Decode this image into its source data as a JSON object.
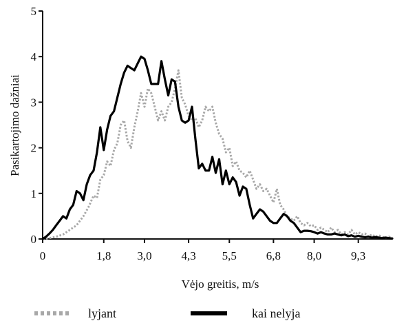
{
  "chart_data": {
    "type": "line",
    "xlabel": "Vėjo greitis, m/s",
    "ylabel": "Pasikartojimo dažniai",
    "xlim": [
      0,
      10.3
    ],
    "ylim": [
      0,
      5
    ],
    "x_ticks": [
      {
        "value": 0,
        "label": "0"
      },
      {
        "value": 1.8,
        "label": "1,8"
      },
      {
        "value": 3.0,
        "label": "3,0"
      },
      {
        "value": 4.3,
        "label": "4,3"
      },
      {
        "value": 5.5,
        "label": "5,5"
      },
      {
        "value": 6.8,
        "label": "6,8"
      },
      {
        "value": 8.0,
        "label": "8,0"
      },
      {
        "value": 9.3,
        "label": "9,3"
      }
    ],
    "y_ticks": [
      {
        "value": 0,
        "label": "0"
      },
      {
        "value": 1,
        "label": "1"
      },
      {
        "value": 2,
        "label": "2"
      },
      {
        "value": 3,
        "label": "3"
      },
      {
        "value": 4,
        "label": "4"
      },
      {
        "value": 5,
        "label": "5"
      }
    ],
    "grid": false,
    "legend_position": "bottom",
    "series": [
      {
        "name": "lyjant",
        "style": "dotted",
        "color": "#a8a8a8",
        "x": [
          0,
          0.2,
          0.4,
          0.6,
          0.8,
          1.0,
          1.2,
          1.35,
          1.5,
          1.6,
          1.7,
          1.8,
          1.9,
          2.0,
          2.1,
          2.2,
          2.3,
          2.4,
          2.5,
          2.6,
          2.7,
          2.8,
          2.9,
          3.0,
          3.1,
          3.2,
          3.3,
          3.4,
          3.5,
          3.6,
          3.7,
          3.8,
          3.9,
          4.0,
          4.1,
          4.2,
          4.3,
          4.4,
          4.5,
          4.6,
          4.7,
          4.8,
          4.9,
          5.0,
          5.1,
          5.2,
          5.3,
          5.4,
          5.5,
          5.6,
          5.7,
          5.8,
          5.9,
          6.0,
          6.1,
          6.2,
          6.3,
          6.4,
          6.5,
          6.6,
          6.7,
          6.8,
          6.9,
          7.0,
          7.1,
          7.2,
          7.3,
          7.4,
          7.5,
          7.6,
          7.7,
          7.8,
          7.9,
          8.0,
          8.1,
          8.2,
          8.3,
          8.4,
          8.5,
          8.6,
          8.7,
          8.8,
          8.9,
          9.0,
          9.1,
          9.2,
          9.3,
          9.4,
          9.5,
          9.6,
          9.7,
          9.8,
          9.9,
          10.0,
          10.1,
          10.2,
          10.3
        ],
        "y": [
          0,
          0.02,
          0.05,
          0.1,
          0.2,
          0.3,
          0.5,
          0.7,
          0.95,
          0.9,
          1.3,
          1.4,
          1.7,
          1.6,
          1.95,
          2.1,
          2.5,
          2.6,
          2.15,
          2.0,
          2.45,
          2.8,
          3.2,
          2.9,
          3.3,
          3.2,
          2.9,
          2.6,
          2.8,
          2.6,
          2.9,
          3.0,
          3.3,
          3.7,
          3.1,
          2.95,
          2.7,
          2.6,
          2.65,
          2.45,
          2.6,
          2.9,
          2.8,
          2.9,
          2.55,
          2.3,
          2.2,
          1.9,
          2.0,
          1.6,
          1.7,
          1.5,
          1.45,
          1.35,
          1.5,
          1.3,
          1.1,
          1.2,
          1.05,
          1.1,
          0.95,
          0.8,
          1.1,
          0.75,
          0.65,
          0.5,
          0.45,
          0.4,
          0.5,
          0.35,
          0.3,
          0.35,
          0.28,
          0.3,
          0.2,
          0.25,
          0.2,
          0.15,
          0.25,
          0.15,
          0.2,
          0.1,
          0.15,
          0.1,
          0.2,
          0.1,
          0.15,
          0.1,
          0.12,
          0.05,
          0.1,
          0.05,
          0.08,
          0.05,
          0.02,
          0.05,
          0.02
        ]
      },
      {
        "name": "kai nelyja",
        "style": "solid",
        "color": "#000000",
        "x": [
          0,
          0.1,
          0.2,
          0.3,
          0.4,
          0.5,
          0.6,
          0.7,
          0.8,
          0.9,
          1.0,
          1.1,
          1.2,
          1.3,
          1.4,
          1.5,
          1.6,
          1.7,
          1.8,
          1.9,
          2.0,
          2.1,
          2.2,
          2.3,
          2.4,
          2.5,
          2.6,
          2.7,
          2.8,
          2.9,
          3.0,
          3.1,
          3.2,
          3.3,
          3.4,
          3.5,
          3.6,
          3.7,
          3.8,
          3.9,
          4.0,
          4.1,
          4.2,
          4.3,
          4.4,
          4.5,
          4.6,
          4.7,
          4.8,
          4.9,
          5.0,
          5.1,
          5.2,
          5.3,
          5.4,
          5.5,
          5.6,
          5.7,
          5.8,
          5.9,
          6.0,
          6.1,
          6.2,
          6.3,
          6.4,
          6.5,
          6.6,
          6.7,
          6.8,
          6.9,
          7.0,
          7.1,
          7.2,
          7.3,
          7.4,
          7.5,
          7.6,
          7.7,
          7.8,
          7.9,
          8.0,
          8.1,
          8.2,
          8.3,
          8.4,
          8.5,
          8.6,
          8.7,
          8.8,
          8.9,
          9.0,
          9.1,
          9.2,
          9.3,
          9.4,
          9.5,
          9.6,
          9.7,
          9.8,
          9.9,
          10.0,
          10.1,
          10.2,
          10.3
        ],
        "y": [
          0,
          0.05,
          0.12,
          0.2,
          0.3,
          0.4,
          0.5,
          0.45,
          0.65,
          0.75,
          1.05,
          1.0,
          0.85,
          1.2,
          1.4,
          1.5,
          1.9,
          2.45,
          1.95,
          2.4,
          2.7,
          2.8,
          3.1,
          3.4,
          3.65,
          3.8,
          3.75,
          3.7,
          3.85,
          4.0,
          3.95,
          3.7,
          3.4,
          3.4,
          3.4,
          3.9,
          3.5,
          3.15,
          3.5,
          3.45,
          2.9,
          2.6,
          2.55,
          2.6,
          2.9,
          2.2,
          1.55,
          1.65,
          1.5,
          1.5,
          1.8,
          1.45,
          1.75,
          1.2,
          1.5,
          1.2,
          1.35,
          1.25,
          0.95,
          1.15,
          1.1,
          0.75,
          0.45,
          0.55,
          0.65,
          0.6,
          0.5,
          0.4,
          0.35,
          0.35,
          0.45,
          0.55,
          0.5,
          0.4,
          0.35,
          0.25,
          0.15,
          0.18,
          0.18,
          0.17,
          0.15,
          0.12,
          0.15,
          0.12,
          0.1,
          0.1,
          0.12,
          0.1,
          0.08,
          0.1,
          0.06,
          0.08,
          0.05,
          0.07,
          0.05,
          0.04,
          0.05,
          0.03,
          0.04,
          0.03,
          0.02,
          0.03,
          0.02,
          0.01
        ]
      }
    ]
  }
}
